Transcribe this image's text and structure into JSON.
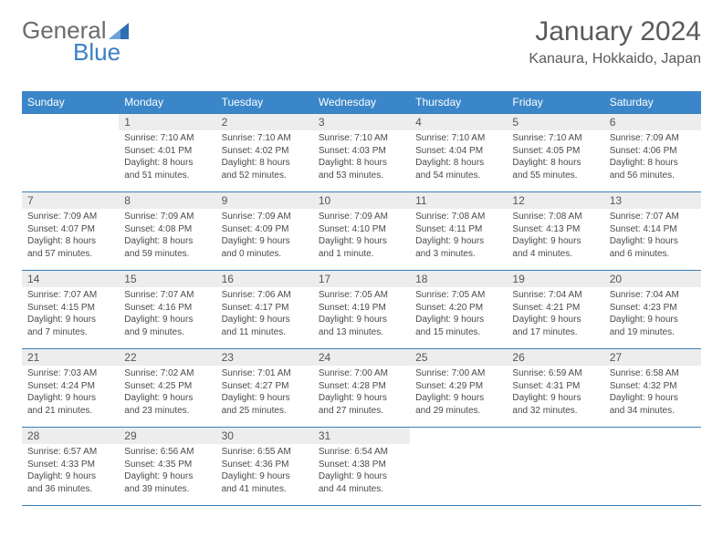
{
  "logo": {
    "text1": "General",
    "text2": "Blue",
    "shape_color": "#2e6fb5"
  },
  "header": {
    "month_title": "January 2024",
    "location": "Kanaura, Hokkaido, Japan"
  },
  "colors": {
    "header_bg": "#3a86c8",
    "header_text": "#ffffff",
    "row_border": "#3a7fb8",
    "daynum_bg": "#ededed",
    "body_text": "#4a4a4a",
    "page_bg": "#ffffff"
  },
  "day_names": [
    "Sunday",
    "Monday",
    "Tuesday",
    "Wednesday",
    "Thursday",
    "Friday",
    "Saturday"
  ],
  "layout": {
    "first_weekday_index": 1,
    "days_in_month": 31
  },
  "days": {
    "1": {
      "sunrise": "7:10 AM",
      "sunset": "4:01 PM",
      "daylight": "8 hours and 51 minutes."
    },
    "2": {
      "sunrise": "7:10 AM",
      "sunset": "4:02 PM",
      "daylight": "8 hours and 52 minutes."
    },
    "3": {
      "sunrise": "7:10 AM",
      "sunset": "4:03 PM",
      "daylight": "8 hours and 53 minutes."
    },
    "4": {
      "sunrise": "7:10 AM",
      "sunset": "4:04 PM",
      "daylight": "8 hours and 54 minutes."
    },
    "5": {
      "sunrise": "7:10 AM",
      "sunset": "4:05 PM",
      "daylight": "8 hours and 55 minutes."
    },
    "6": {
      "sunrise": "7:09 AM",
      "sunset": "4:06 PM",
      "daylight": "8 hours and 56 minutes."
    },
    "7": {
      "sunrise": "7:09 AM",
      "sunset": "4:07 PM",
      "daylight": "8 hours and 57 minutes."
    },
    "8": {
      "sunrise": "7:09 AM",
      "sunset": "4:08 PM",
      "daylight": "8 hours and 59 minutes."
    },
    "9": {
      "sunrise": "7:09 AM",
      "sunset": "4:09 PM",
      "daylight": "9 hours and 0 minutes."
    },
    "10": {
      "sunrise": "7:09 AM",
      "sunset": "4:10 PM",
      "daylight": "9 hours and 1 minute."
    },
    "11": {
      "sunrise": "7:08 AM",
      "sunset": "4:11 PM",
      "daylight": "9 hours and 3 minutes."
    },
    "12": {
      "sunrise": "7:08 AM",
      "sunset": "4:13 PM",
      "daylight": "9 hours and 4 minutes."
    },
    "13": {
      "sunrise": "7:07 AM",
      "sunset": "4:14 PM",
      "daylight": "9 hours and 6 minutes."
    },
    "14": {
      "sunrise": "7:07 AM",
      "sunset": "4:15 PM",
      "daylight": "9 hours and 7 minutes."
    },
    "15": {
      "sunrise": "7:07 AM",
      "sunset": "4:16 PM",
      "daylight": "9 hours and 9 minutes."
    },
    "16": {
      "sunrise": "7:06 AM",
      "sunset": "4:17 PM",
      "daylight": "9 hours and 11 minutes."
    },
    "17": {
      "sunrise": "7:05 AM",
      "sunset": "4:19 PM",
      "daylight": "9 hours and 13 minutes."
    },
    "18": {
      "sunrise": "7:05 AM",
      "sunset": "4:20 PM",
      "daylight": "9 hours and 15 minutes."
    },
    "19": {
      "sunrise": "7:04 AM",
      "sunset": "4:21 PM",
      "daylight": "9 hours and 17 minutes."
    },
    "20": {
      "sunrise": "7:04 AM",
      "sunset": "4:23 PM",
      "daylight": "9 hours and 19 minutes."
    },
    "21": {
      "sunrise": "7:03 AM",
      "sunset": "4:24 PM",
      "daylight": "9 hours and 21 minutes."
    },
    "22": {
      "sunrise": "7:02 AM",
      "sunset": "4:25 PM",
      "daylight": "9 hours and 23 minutes."
    },
    "23": {
      "sunrise": "7:01 AM",
      "sunset": "4:27 PM",
      "daylight": "9 hours and 25 minutes."
    },
    "24": {
      "sunrise": "7:00 AM",
      "sunset": "4:28 PM",
      "daylight": "9 hours and 27 minutes."
    },
    "25": {
      "sunrise": "7:00 AM",
      "sunset": "4:29 PM",
      "daylight": "9 hours and 29 minutes."
    },
    "26": {
      "sunrise": "6:59 AM",
      "sunset": "4:31 PM",
      "daylight": "9 hours and 32 minutes."
    },
    "27": {
      "sunrise": "6:58 AM",
      "sunset": "4:32 PM",
      "daylight": "9 hours and 34 minutes."
    },
    "28": {
      "sunrise": "6:57 AM",
      "sunset": "4:33 PM",
      "daylight": "9 hours and 36 minutes."
    },
    "29": {
      "sunrise": "6:56 AM",
      "sunset": "4:35 PM",
      "daylight": "9 hours and 39 minutes."
    },
    "30": {
      "sunrise": "6:55 AM",
      "sunset": "4:36 PM",
      "daylight": "9 hours and 41 minutes."
    },
    "31": {
      "sunrise": "6:54 AM",
      "sunset": "4:38 PM",
      "daylight": "9 hours and 44 minutes."
    }
  },
  "labels": {
    "sunrise": "Sunrise:",
    "sunset": "Sunset:",
    "daylight": "Daylight:"
  }
}
